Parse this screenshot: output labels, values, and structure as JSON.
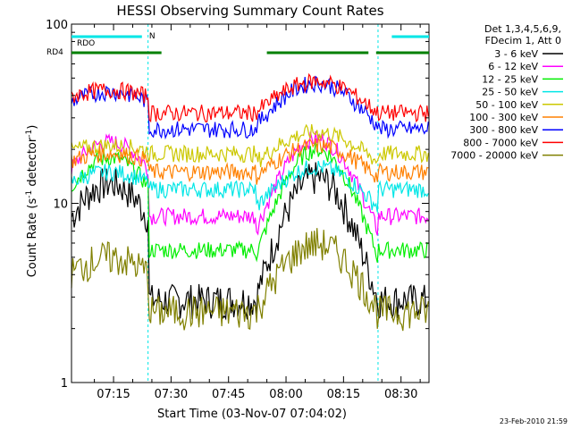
{
  "chart_data": {
    "type": "line",
    "title": "HESSI Observing Summary Count Rates",
    "xlabel": "Start Time (03-Nov-07 07:04:02)",
    "ylabel_main": "Count Rate (s",
    "ylabel_sup1": "-1",
    "ylabel_mid": " detector",
    "ylabel_sup2": "-1",
    "ylabel_end": ")",
    "x_range_minutes_since_0700": [
      4.03,
      97.3
    ],
    "y_scale": "log",
    "y_range": [
      1,
      100
    ],
    "x_ticks": [
      "07:15",
      "07:30",
      "07:45",
      "08:00",
      "08:15",
      "08:30"
    ],
    "x_tick_minutes": [
      15,
      30,
      45,
      60,
      75,
      90
    ],
    "y_ticks": [
      "1",
      "10",
      "100"
    ],
    "y_tick_values": [
      1,
      10,
      100
    ],
    "legend_header": [
      "Det 1,3,4,5,6,9,",
      "FDecim 1, Att 0"
    ],
    "timestamp": "23-Feb-2010 21:59",
    "flags": [
      {
        "label": "RDO",
        "color": "#00e6e6",
        "intervals": [
          [
            4.03,
            22.4
          ],
          [
            87.6,
            97.3
          ]
        ],
        "marker": "N",
        "marker_time": 24.3
      },
      {
        "label": "RD4",
        "color": "#008000",
        "intervals": [
          [
            4.03,
            27.5
          ],
          [
            55.0,
            81.5
          ],
          [
            83.5,
            97.3
          ]
        ]
      }
    ],
    "night_boundaries_minutes": [
      4.03,
      24.0,
      84.0,
      97.3
    ],
    "sun_segments_minutes": [
      [
        4.03,
        24.0
      ],
      [
        52.0,
        84.0
      ]
    ],
    "series": [
      {
        "name": "3 - 6 keV",
        "color": "#000000",
        "peaks": [
          13,
          14
        ],
        "trough_sun": 2.9,
        "trough_ecl": 2.9
      },
      {
        "name": "6 - 12 keV",
        "color": "#ff00ff",
        "peaks": [
          22,
          23
        ],
        "trough_sun": 7.0,
        "trough_ecl": 8.5
      },
      {
        "name": "12 - 25 keV",
        "color": "#00ee00",
        "peaks": [
          18,
          20
        ],
        "trough_sun": 5.0,
        "trough_ecl": 5.5
      },
      {
        "name": "25 - 50 keV",
        "color": "#00e6e6",
        "peaks": [
          15,
          16
        ],
        "trough_sun": 9.5,
        "trough_ecl": 12
      },
      {
        "name": "50 - 100 keV",
        "color": "#ccc800",
        "peaks": [
          21,
          25
        ],
        "trough_sun": 17,
        "trough_ecl": 19
      },
      {
        "name": "100 - 300 keV",
        "color": "#ff8000",
        "peaks": [
          19,
          21
        ],
        "trough_sun": 14,
        "trough_ecl": 15
      },
      {
        "name": "300 - 800 keV",
        "color": "#0000ff",
        "peaks": [
          42,
          47
        ],
        "trough_sun": 27,
        "trough_ecl": 26
      },
      {
        "name": "800 - 7000 keV",
        "color": "#ff0000",
        "peaks": [
          43,
          48
        ],
        "trough_sun": 32,
        "trough_ecl": 32
      },
      {
        "name": "7000 - 20000 keV",
        "color": "#808000",
        "peaks": [
          5,
          6
        ],
        "trough_sun": 2.5,
        "trough_ecl": 2.5
      }
    ]
  }
}
